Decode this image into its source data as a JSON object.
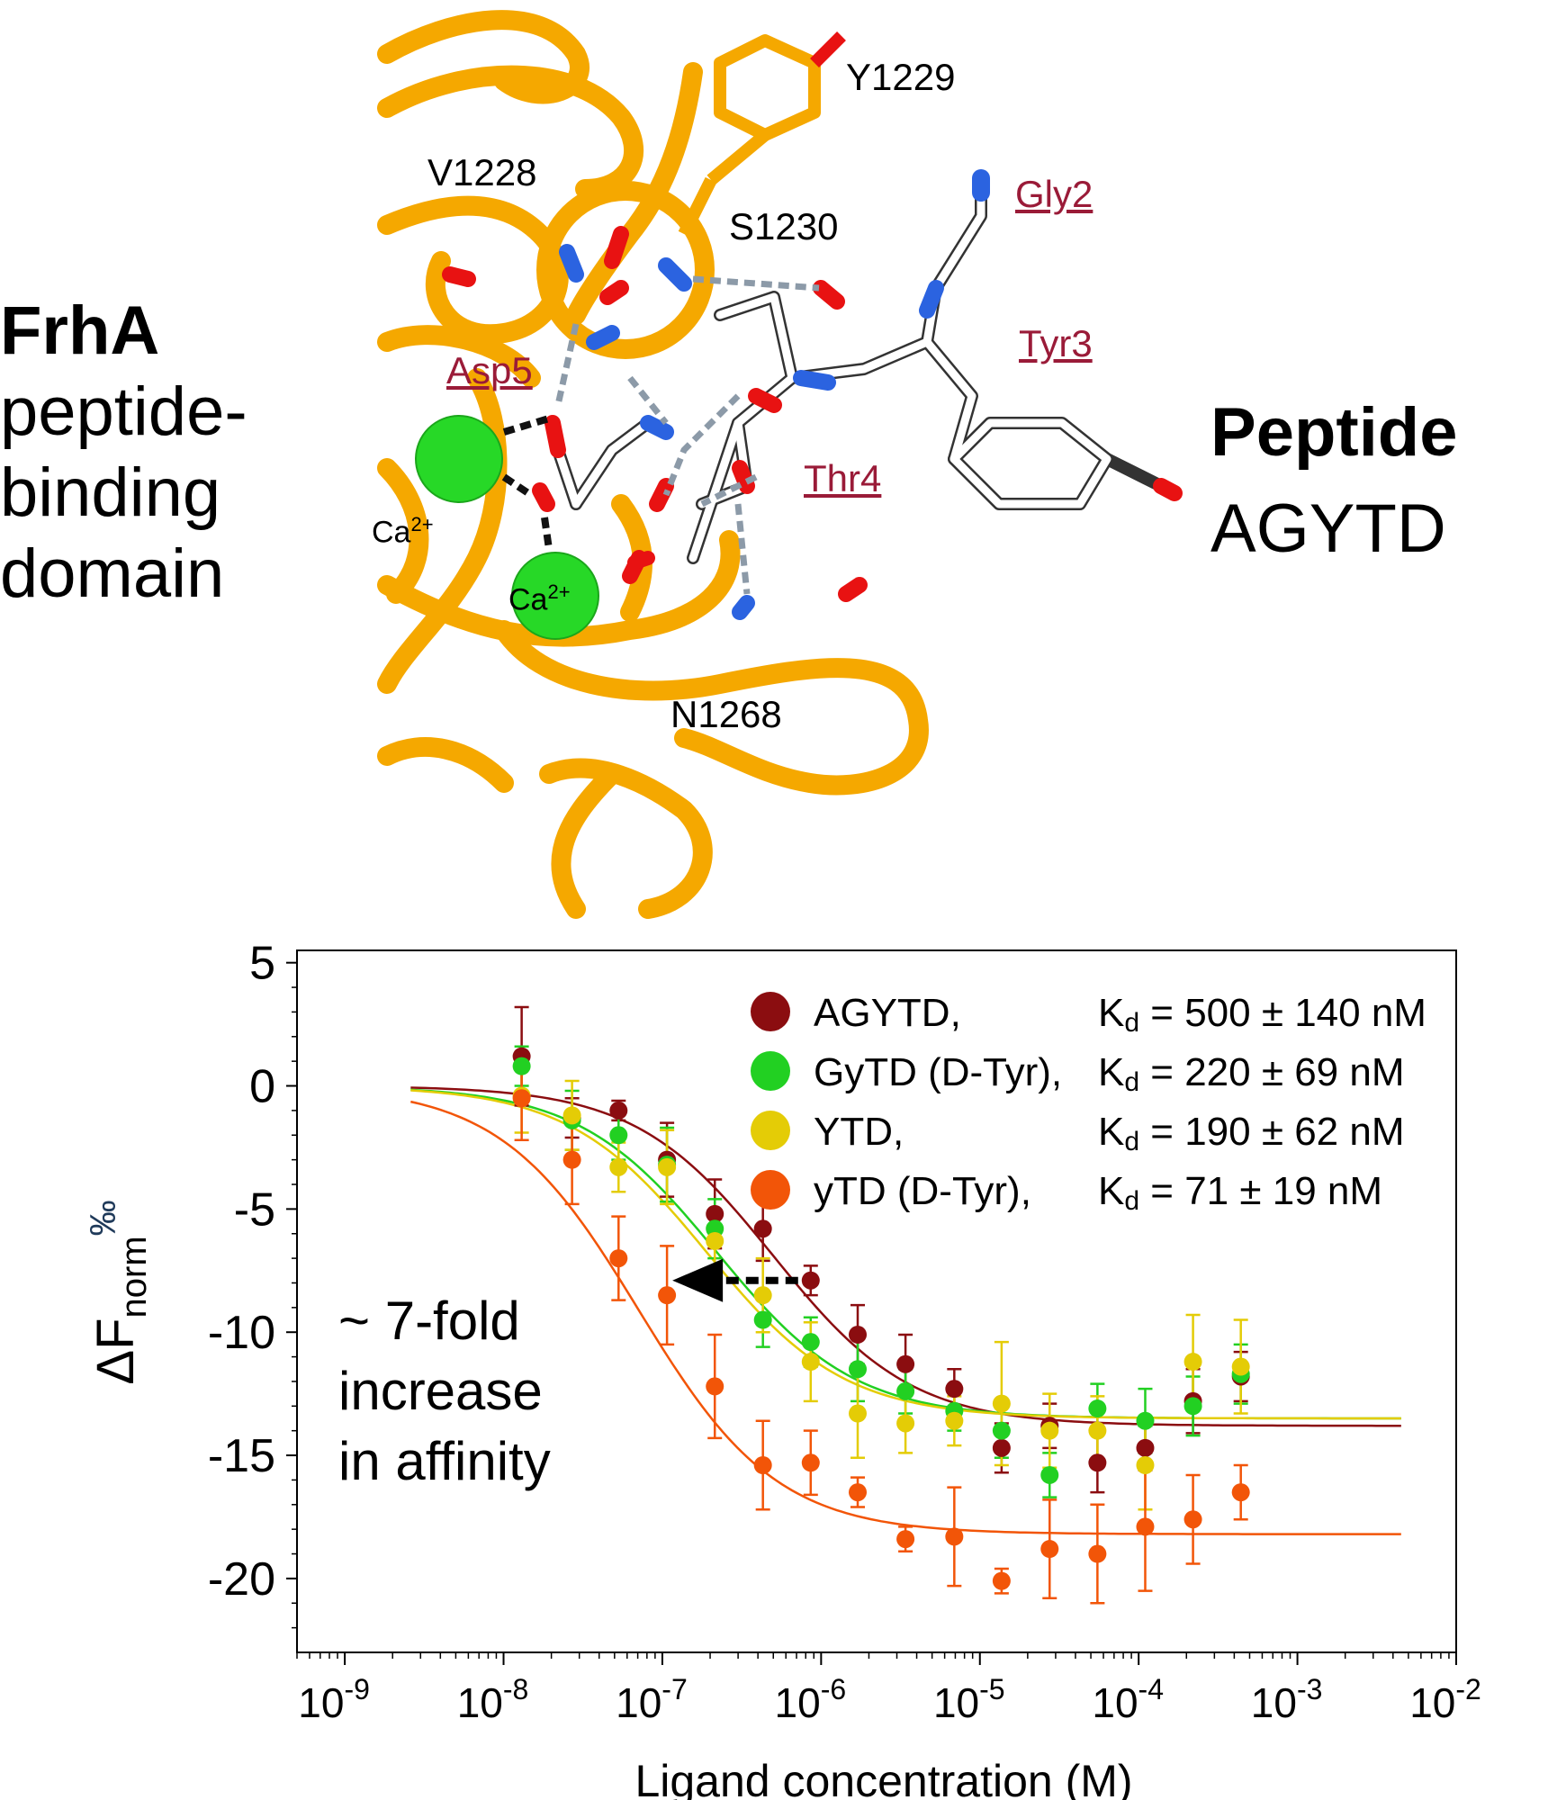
{
  "figure": {
    "left_title": {
      "bold": "FrhA",
      "lines": [
        "peptide-",
        "binding",
        "domain"
      ]
    },
    "right_title": {
      "bold": "Peptide",
      "sequence": "AGYTD"
    },
    "residue_labels": [
      "Y1229",
      "V1228",
      "S1230",
      "N1268"
    ],
    "peptide_labels": [
      "Gly2",
      "Tyr3",
      "Asp5",
      "Thr4"
    ],
    "ion_labels": {
      "ca_base": "Ca",
      "ca_sup": "2+"
    },
    "colors": {
      "backbone": "#f5a800",
      "ca": "#27d827",
      "oxygen": "#e81212",
      "nitrogen": "#2b63e0",
      "carbon": "#ffffff",
      "peptide_label": "#9a1b38"
    }
  },
  "chart_data": {
    "type": "scatter",
    "xlabel": "Ligand concentration (M)",
    "ylabel": "ΔF",
    "ylabel_sub": "norm",
    "ylabel_unit": "‰",
    "x_scale": "log",
    "xlim": [
      5e-10,
      0.01
    ],
    "ylim": [
      -23,
      5.5
    ],
    "yticks": [
      5,
      0,
      -5,
      -10,
      -15,
      -20
    ],
    "xticks": [
      1e-09,
      1e-08,
      1e-07,
      1e-06,
      1e-05,
      0.0001,
      0.001,
      0.01
    ],
    "xtick_labels": [
      {
        "base": "10",
        "exp": "-9"
      },
      {
        "base": "10",
        "exp": "-8"
      },
      {
        "base": "10",
        "exp": "-7"
      },
      {
        "base": "10",
        "exp": "-6"
      },
      {
        "base": "10",
        "exp": "-5"
      },
      {
        "base": "10",
        "exp": "-4"
      },
      {
        "base": "10",
        "exp": "-3"
      },
      {
        "base": "10",
        "exp": "-2"
      }
    ],
    "grid": false,
    "legend_position": "top-right",
    "annotation": {
      "lines": [
        "~ 7-fold",
        "increase",
        "in affinity"
      ],
      "color": "#ee1111"
    },
    "fit_range": [
      2.6e-09,
      0.0045
    ],
    "series": [
      {
        "name": "AGYTD,",
        "kd_label": "K",
        "kd_sub": "d",
        "kd_value": " = 500 ± 140 nM",
        "color": "#8b0d10",
        "fit": {
          "kd": 5e-07,
          "bottom": -13.8
        },
        "x": [
          1.3e-08,
          2.7e-08,
          5.3e-08,
          1.07e-07,
          2.14e-07,
          4.3e-07,
          8.6e-07,
          1.7e-06,
          3.4e-06,
          6.9e-06,
          1.37e-05,
          2.75e-05,
          5.5e-05,
          0.00011,
          0.00022,
          0.00044
        ],
        "y": [
          1.2,
          -1.3,
          -1.0,
          -3.0,
          -5.2,
          -5.8,
          -7.9,
          -10.1,
          -11.3,
          -12.3,
          -14.7,
          -13.8,
          -15.3,
          -14.7,
          -12.8,
          -11.8
        ],
        "err": [
          2.0,
          0.8,
          0.4,
          1.5,
          1.4,
          1.3,
          0.6,
          1.2,
          1.2,
          0.8,
          1.0,
          0.9,
          1.2,
          0.9,
          1.3,
          1.0
        ]
      },
      {
        "name": "GyTD (D-Tyr),",
        "kd_label": "K",
        "kd_sub": "d",
        "kd_value": " = 220 ± 69 nM",
        "color": "#22d022",
        "fit": {
          "kd": 2.2e-07,
          "bottom": -13.5
        },
        "x": [
          1.3e-08,
          2.7e-08,
          5.3e-08,
          1.07e-07,
          2.14e-07,
          4.3e-07,
          8.6e-07,
          1.7e-06,
          3.4e-06,
          6.9e-06,
          1.37e-05,
          2.75e-05,
          5.5e-05,
          0.00011,
          0.00022,
          0.00044
        ],
        "y": [
          0.8,
          -1.4,
          -2.0,
          -3.2,
          -5.8,
          -9.5,
          -10.4,
          -11.5,
          -12.4,
          -13.2,
          -14.0,
          -15.8,
          -13.1,
          -13.6,
          -13.0,
          -11.7
        ],
        "err": [
          0.8,
          1.2,
          1.0,
          1.5,
          1.2,
          1.1,
          1.0,
          1.3,
          0.9,
          0.8,
          1.1,
          0.9,
          1.0,
          1.3,
          1.2,
          1.2
        ]
      },
      {
        "name": "YTD,",
        "kd_label": "K",
        "kd_sub": "d",
        "kd_value": " = 190 ± 62 nM",
        "color": "#e4cc06",
        "fit": {
          "kd": 1.9e-07,
          "bottom": -13.5
        },
        "x": [
          1.3e-08,
          2.7e-08,
          5.3e-08,
          1.07e-07,
          2.14e-07,
          4.3e-07,
          8.6e-07,
          1.7e-06,
          3.4e-06,
          6.9e-06,
          1.37e-05,
          2.75e-05,
          5.5e-05,
          0.00011,
          0.00022,
          0.00044
        ],
        "y": [
          -0.4,
          -1.2,
          -3.3,
          -3.3,
          -6.3,
          -8.5,
          -11.2,
          -13.3,
          -13.7,
          -13.6,
          -12.9,
          -14.0,
          -14.0,
          -15.4,
          -11.2,
          -11.4
        ],
        "err": [
          1.5,
          1.4,
          1.0,
          1.5,
          1.2,
          1.5,
          1.6,
          1.8,
          1.2,
          1.0,
          2.5,
          1.5,
          1.4,
          1.8,
          1.9,
          1.9
        ]
      },
      {
        "name": "yTD (D-Tyr),",
        "kd_label": "K",
        "kd_sub": "d",
        "kd_value": " = 71 ± 19 nM",
        "color": "#f25508",
        "fit": {
          "kd": 7.1e-08,
          "bottom": -18.2
        },
        "x": [
          1.3e-08,
          2.7e-08,
          5.3e-08,
          1.07e-07,
          2.14e-07,
          4.3e-07,
          8.6e-07,
          1.7e-06,
          3.4e-06,
          6.9e-06,
          1.37e-05,
          2.75e-05,
          5.5e-05,
          0.00011,
          0.00022,
          0.00044
        ],
        "y": [
          -0.5,
          -3.0,
          -7.0,
          -8.5,
          -12.2,
          -15.4,
          -15.3,
          -16.5,
          -18.4,
          -18.3,
          -20.1,
          -18.8,
          -19.0,
          -17.9,
          -17.6,
          -16.5
        ],
        "err": [
          1.7,
          1.8,
          1.7,
          2.0,
          2.1,
          1.8,
          1.3,
          0.6,
          0.5,
          2.0,
          0.5,
          2.0,
          2.0,
          2.6,
          1.8,
          1.1
        ]
      }
    ],
    "shift_arrow": {
      "from_x": 8.6e-07,
      "to_x": 1.07e-07,
      "y": -7.9
    }
  }
}
